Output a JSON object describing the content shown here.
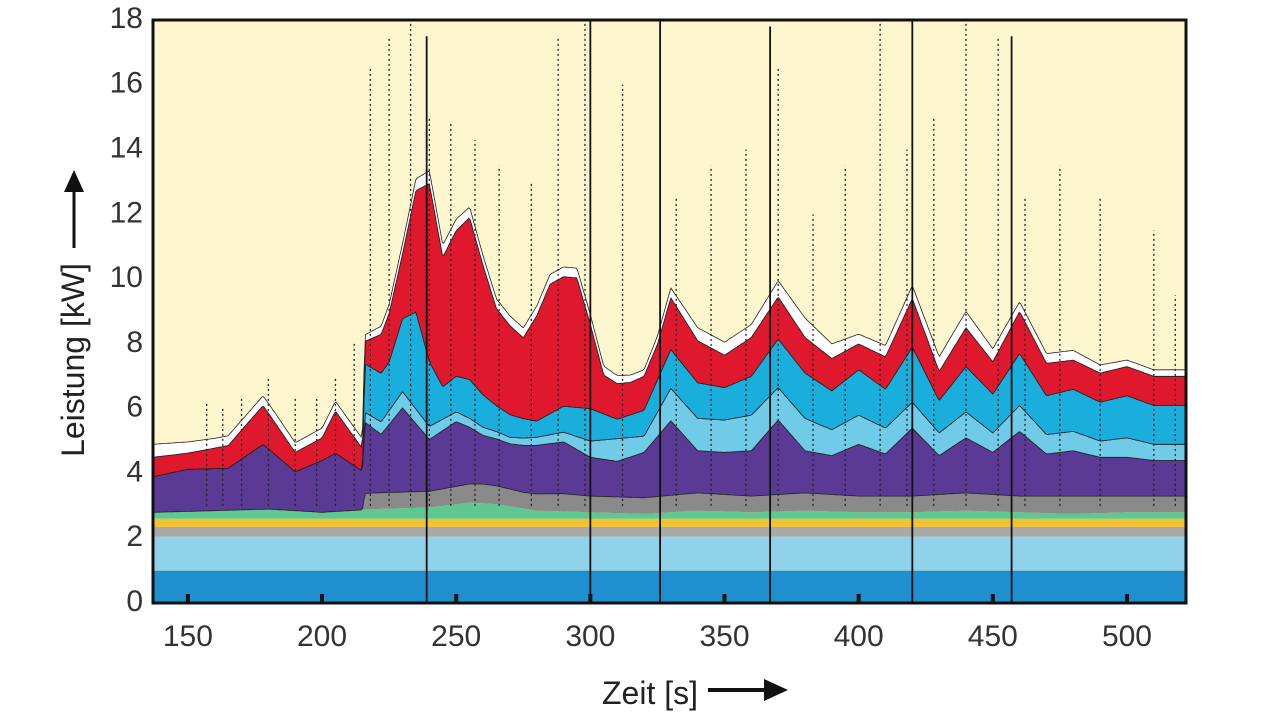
{
  "chart_data": {
    "type": "area",
    "title": "",
    "xlabel": "Zeit [s]",
    "ylabel": "Leistung [kW]",
    "xlim": [
      137,
      522
    ],
    "ylim": [
      0,
      18
    ],
    "xticks": [
      150,
      200,
      250,
      300,
      350,
      400,
      450,
      500
    ],
    "yticks": [
      0,
      2,
      4,
      6,
      8,
      10,
      12,
      14,
      16,
      18
    ],
    "grid": false,
    "legend": "none",
    "background_color": "#fdf6cf",
    "series_order_bottom_to_top": [
      "#1f8fd0",
      "#8fd2ea",
      "#a9a9a9",
      "#f2c230",
      "#5fc890",
      "#8a8a8a",
      "#5b3a96",
      "#6fcbe8",
      "#1aaedc",
      "#e0182d",
      "#ffffff"
    ],
    "series": [
      {
        "color": "#1f8fd0",
        "x": [
          137,
          522
        ],
        "values": [
          1.0,
          1.0
        ]
      },
      {
        "color": "#8fd2ea",
        "x": [
          137,
          522
        ],
        "values": [
          1.05,
          1.05
        ]
      },
      {
        "color": "#a9a9a9",
        "x": [
          137,
          522
        ],
        "values": [
          0.3,
          0.3
        ]
      },
      {
        "color": "#f2c230",
        "x": [
          137,
          522
        ],
        "values": [
          0.25,
          0.25
        ]
      },
      {
        "color": "#5fc890",
        "x": [
          137,
          160,
          180,
          200,
          220,
          240,
          255,
          265,
          280,
          300,
          320,
          340,
          360,
          380,
          400,
          420,
          440,
          460,
          480,
          500,
          522
        ],
        "values": [
          0.2,
          0.25,
          0.3,
          0.2,
          0.3,
          0.35,
          0.5,
          0.45,
          0.25,
          0.2,
          0.15,
          0.25,
          0.2,
          0.25,
          0.2,
          0.2,
          0.25,
          0.2,
          0.15,
          0.2,
          0.2
        ]
      },
      {
        "color": "#8a8a8a",
        "x": [
          137,
          215,
          216,
          240,
          260,
          275,
          290,
          300,
          320,
          340,
          360,
          380,
          400,
          420,
          440,
          460,
          480,
          500,
          522
        ],
        "values": [
          0,
          0,
          0.5,
          0.5,
          0.6,
          0.5,
          0.55,
          0.5,
          0.5,
          0.55,
          0.5,
          0.55,
          0.5,
          0.5,
          0.55,
          0.5,
          0.55,
          0.5,
          0.5
        ]
      },
      {
        "color": "#5b3a96",
        "x": [
          137,
          150,
          165,
          178,
          190,
          205,
          215,
          216,
          222,
          230,
          240,
          250,
          260,
          270,
          280,
          290,
          300,
          310,
          320,
          330,
          340,
          350,
          360,
          370,
          380,
          390,
          400,
          410,
          420,
          430,
          440,
          450,
          460,
          470,
          480,
          490,
          500,
          510,
          522
        ],
        "values": [
          1.1,
          1.3,
          1.3,
          2.0,
          1.2,
          1.8,
          1.2,
          2.2,
          1.8,
          2.6,
          1.6,
          2.0,
          1.5,
          1.4,
          1.5,
          1.6,
          1.2,
          1.1,
          1.4,
          2.3,
          1.3,
          1.3,
          1.4,
          2.3,
          1.3,
          1.2,
          1.6,
          1.3,
          2.1,
          1.2,
          1.7,
          1.3,
          2.0,
          1.3,
          1.4,
          1.2,
          1.2,
          1.1,
          1.1
        ]
      },
      {
        "color": "#6fcbe8",
        "x": [
          137,
          215,
          216,
          230,
          250,
          270,
          290,
          300,
          310,
          320,
          330,
          340,
          350,
          360,
          370,
          380,
          390,
          400,
          410,
          420,
          430,
          440,
          450,
          460,
          470,
          480,
          490,
          500,
          510,
          522
        ],
        "values": [
          0,
          0,
          0.3,
          0.5,
          0.3,
          0.2,
          0.3,
          0.5,
          0.7,
          0.5,
          1.0,
          1.0,
          1.0,
          1.1,
          1.0,
          1.0,
          0.8,
          0.9,
          0.8,
          0.8,
          0.7,
          0.8,
          0.6,
          0.8,
          0.6,
          0.6,
          0.5,
          0.6,
          0.5,
          0.5
        ]
      },
      {
        "color": "#1aaedc",
        "x": [
          137,
          215,
          216,
          225,
          235,
          245,
          255,
          265,
          280,
          290,
          300,
          310,
          320,
          330,
          340,
          350,
          360,
          370,
          380,
          390,
          400,
          410,
          420,
          430,
          440,
          450,
          460,
          470,
          480,
          490,
          500,
          510,
          522
        ],
        "values": [
          0,
          0,
          1.5,
          1.5,
          3.0,
          1.0,
          1.2,
          0.8,
          0.5,
          0.8,
          1.0,
          0.6,
          0.8,
          1.2,
          1.1,
          1.0,
          1.2,
          1.5,
          1.4,
          1.2,
          1.4,
          1.2,
          1.7,
          1.0,
          1.4,
          1.2,
          1.6,
          1.2,
          1.3,
          1.2,
          1.3,
          1.2,
          1.2
        ]
      },
      {
        "color": "#e0182d",
        "x": [
          137,
          150,
          165,
          178,
          190,
          200,
          205,
          215,
          216,
          222,
          230,
          240,
          245,
          255,
          265,
          275,
          285,
          295,
          305,
          315,
          325,
          330,
          340,
          350,
          360,
          370,
          380,
          390,
          400,
          410,
          420,
          430,
          440,
          450,
          460,
          470,
          480,
          490,
          500,
          510,
          522
        ],
        "values": [
          0.6,
          0.5,
          0.7,
          1.2,
          0.6,
          0.7,
          1.3,
          0.7,
          0.7,
          1.2,
          2.0,
          5.5,
          4.0,
          5.0,
          3.0,
          2.5,
          4.0,
          4.0,
          1.2,
          1.0,
          1.1,
          1.6,
          1.3,
          1.0,
          1.2,
          1.3,
          1.1,
          1.0,
          0.8,
          1.0,
          1.5,
          0.9,
          1.2,
          1.0,
          1.3,
          1.0,
          0.9,
          0.9,
          0.9,
          0.9,
          0.9
        ]
      },
      {
        "color": "#ffffff",
        "x": [
          137,
          160,
          180,
          200,
          215,
          216,
          240,
          260,
          280,
          300,
          320,
          340,
          360,
          380,
          400,
          420,
          440,
          460,
          480,
          500,
          522
        ],
        "values": [
          0.4,
          0.3,
          0.3,
          0.3,
          0.3,
          0.2,
          0.4,
          0.3,
          0.3,
          0.3,
          0.2,
          0.4,
          0.4,
          0.6,
          0.3,
          0.4,
          0.5,
          0.3,
          0.3,
          0.2,
          0.2
        ]
      }
    ],
    "spikes_dotted_x": [
      157,
      163,
      170,
      180,
      190,
      198,
      205,
      212,
      218,
      225,
      233,
      240,
      248,
      257,
      266,
      278,
      288,
      298,
      312,
      326,
      332,
      345,
      358,
      370,
      383,
      395,
      408,
      418,
      428,
      440,
      452,
      462,
      475,
      490,
      510,
      518
    ],
    "spikes_dotted_peak": [
      6.2,
      6.0,
      6.4,
      7.0,
      6.4,
      6.3,
      7.0,
      8.0,
      16.5,
      17.5,
      18.0,
      15.0,
      14.8,
      14.3,
      13.5,
      13.0,
      17.5,
      18.0,
      16.0,
      17.5,
      12.5,
      13.5,
      14.0,
      16.5,
      12.0,
      13.5,
      18.0,
      14.0,
      15.0,
      18.0,
      17.5,
      12.5,
      13.5,
      12.5,
      11.5,
      9.5
    ],
    "spikes_solid_x": [
      239,
      300,
      326,
      367,
      420,
      457
    ],
    "spikes_solid_peak": [
      17.5,
      18.0,
      18.0,
      17.8,
      18.0,
      17.5
    ]
  }
}
